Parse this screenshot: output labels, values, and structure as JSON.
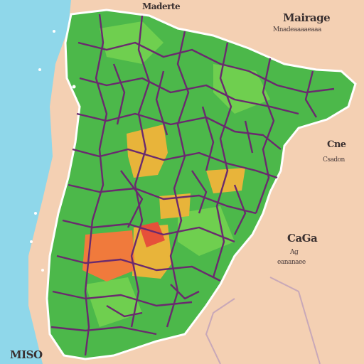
{
  "colors": {
    "sea": "#8fd7ea",
    "land_foreign": "#f4d0b3",
    "region_green": "#4cb84a",
    "region_green_light": "#6fcf4f",
    "region_yellow": "#e8b43a",
    "region_orange": "#f07a3c",
    "region_red": "#e6503a",
    "boundary": "#6a2a6e",
    "country_border": "#c8a8b8"
  },
  "labels": {
    "top_center": "Maderte",
    "top_right_title": "Mairage",
    "top_right_sub": "Mnadeaaaaeaaa",
    "right_middle_title": "Cne",
    "right_middle_sub": "Csadon",
    "right_lower_title": "CaGa",
    "right_lower_sub": "Ag",
    "right_lower_sub2": "eananaee",
    "bottom_left": "MISO"
  }
}
